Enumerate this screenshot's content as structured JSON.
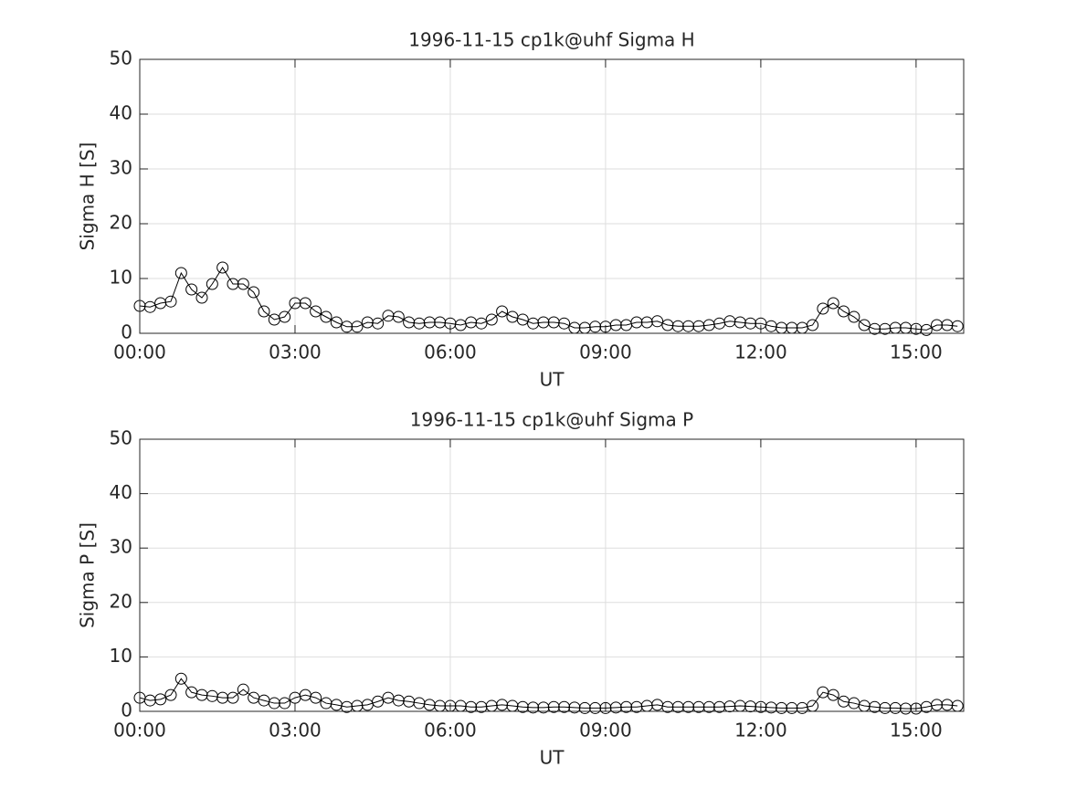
{
  "chart_data": [
    {
      "type": "line",
      "title": "1996-11-15  cp1k@uhf Sigma H",
      "xlabel": "UT",
      "ylabel": "Sigma H [S]",
      "color": "#000000",
      "marker": "circle",
      "grid": true,
      "x": [
        0,
        0.2,
        0.4,
        0.6,
        0.8,
        1,
        1.2,
        1.4,
        1.6,
        1.8,
        2,
        2.2,
        2.4,
        2.6,
        2.8,
        3,
        3.2,
        3.4,
        3.6,
        3.8,
        4,
        4.2,
        4.4,
        4.6,
        4.8,
        5,
        5.2,
        5.4,
        5.6,
        5.8,
        6,
        6.2,
        6.4,
        6.6,
        6.8,
        7,
        7.2,
        7.4,
        7.6,
        7.8,
        8,
        8.2,
        8.4,
        8.6,
        8.8,
        9,
        9.2,
        9.4,
        9.6,
        9.8,
        10,
        10.2,
        10.4,
        10.6,
        10.8,
        11,
        11.2,
        11.4,
        11.6,
        11.8,
        12,
        12.2,
        12.4,
        12.6,
        12.8,
        13,
        13.2,
        13.4,
        13.6,
        13.8,
        14,
        14.2,
        14.4,
        14.6,
        14.8,
        15,
        15.2,
        15.4,
        15.6,
        15.8
      ],
      "values": [
        5,
        4.8,
        5.5,
        5.8,
        11,
        8,
        6.5,
        9,
        12,
        9,
        9,
        7.5,
        4,
        2.5,
        3,
        5.5,
        5.5,
        4,
        3,
        2,
        1.2,
        1.2,
        2,
        1.8,
        3.2,
        3,
        2,
        1.8,
        2,
        2,
        1.8,
        1.5,
        2,
        1.8,
        2.5,
        4,
        3,
        2.5,
        1.8,
        2,
        2,
        1.8,
        1,
        1,
        1.2,
        1.2,
        1.5,
        1.5,
        2,
        2,
        2.2,
        1.5,
        1.3,
        1.3,
        1.3,
        1.5,
        1.8,
        2.2,
        2,
        1.8,
        1.8,
        1.3,
        1,
        1,
        1,
        1.5,
        4.5,
        5.5,
        4,
        3,
        1.5,
        0.8,
        0.8,
        1,
        1,
        0.8,
        0.6,
        1.5,
        1.5,
        1.3
      ],
      "xlim": [
        0,
        15.92
      ],
      "ylim": [
        0,
        50
      ],
      "xticks": [
        {
          "value": 0,
          "label": "00:00"
        },
        {
          "value": 3,
          "label": "03:00"
        },
        {
          "value": 6,
          "label": "06:00"
        },
        {
          "value": 9,
          "label": "09:00"
        },
        {
          "value": 12,
          "label": "12:00"
        },
        {
          "value": 15,
          "label": "15:00"
        }
      ],
      "yticks": [
        0,
        10,
        20,
        30,
        40,
        50
      ]
    },
    {
      "type": "line",
      "title": "1996-11-15  cp1k@uhf Sigma P",
      "xlabel": "UT",
      "ylabel": "Sigma P [S]",
      "color": "#000000",
      "marker": "circle",
      "grid": true,
      "x": [
        0,
        0.2,
        0.4,
        0.6,
        0.8,
        1,
        1.2,
        1.4,
        1.6,
        1.8,
        2,
        2.2,
        2.4,
        2.6,
        2.8,
        3,
        3.2,
        3.4,
        3.6,
        3.8,
        4,
        4.2,
        4.4,
        4.6,
        4.8,
        5,
        5.2,
        5.4,
        5.6,
        5.8,
        6,
        6.2,
        6.4,
        6.6,
        6.8,
        7,
        7.2,
        7.4,
        7.6,
        7.8,
        8,
        8.2,
        8.4,
        8.6,
        8.8,
        9,
        9.2,
        9.4,
        9.6,
        9.8,
        10,
        10.2,
        10.4,
        10.6,
        10.8,
        11,
        11.2,
        11.4,
        11.6,
        11.8,
        12,
        12.2,
        12.4,
        12.6,
        12.8,
        13,
        13.2,
        13.4,
        13.6,
        13.8,
        14,
        14.2,
        14.4,
        14.6,
        14.8,
        15,
        15.2,
        15.4,
        15.6,
        15.8
      ],
      "values": [
        2.5,
        2,
        2.2,
        3,
        6,
        3.5,
        3,
        2.8,
        2.5,
        2.5,
        4,
        2.5,
        2,
        1.5,
        1.5,
        2.5,
        3,
        2.5,
        1.5,
        1.2,
        0.8,
        1,
        1.2,
        1.8,
        2.5,
        2,
        1.8,
        1.5,
        1.2,
        1,
        1,
        1,
        0.8,
        0.8,
        1,
        1.2,
        1,
        0.8,
        0.7,
        0.7,
        0.8,
        0.8,
        0.7,
        0.6,
        0.6,
        0.6,
        0.7,
        0.8,
        0.8,
        1,
        1.2,
        0.8,
        0.8,
        0.8,
        0.8,
        0.8,
        0.8,
        0.9,
        1,
        0.9,
        0.8,
        0.7,
        0.6,
        0.6,
        0.6,
        1,
        3.5,
        3,
        1.8,
        1.5,
        1,
        0.8,
        0.6,
        0.6,
        0.5,
        0.5,
        0.8,
        1.2,
        1.2,
        1
      ],
      "xlim": [
        0,
        15.92
      ],
      "ylim": [
        0,
        50
      ],
      "xticks": [
        {
          "value": 0,
          "label": "00:00"
        },
        {
          "value": 3,
          "label": "03:00"
        },
        {
          "value": 6,
          "label": "06:00"
        },
        {
          "value": 9,
          "label": "09:00"
        },
        {
          "value": 12,
          "label": "12:00"
        },
        {
          "value": 15,
          "label": "15:00"
        }
      ],
      "yticks": [
        0,
        10,
        20,
        30,
        40,
        50
      ]
    }
  ]
}
